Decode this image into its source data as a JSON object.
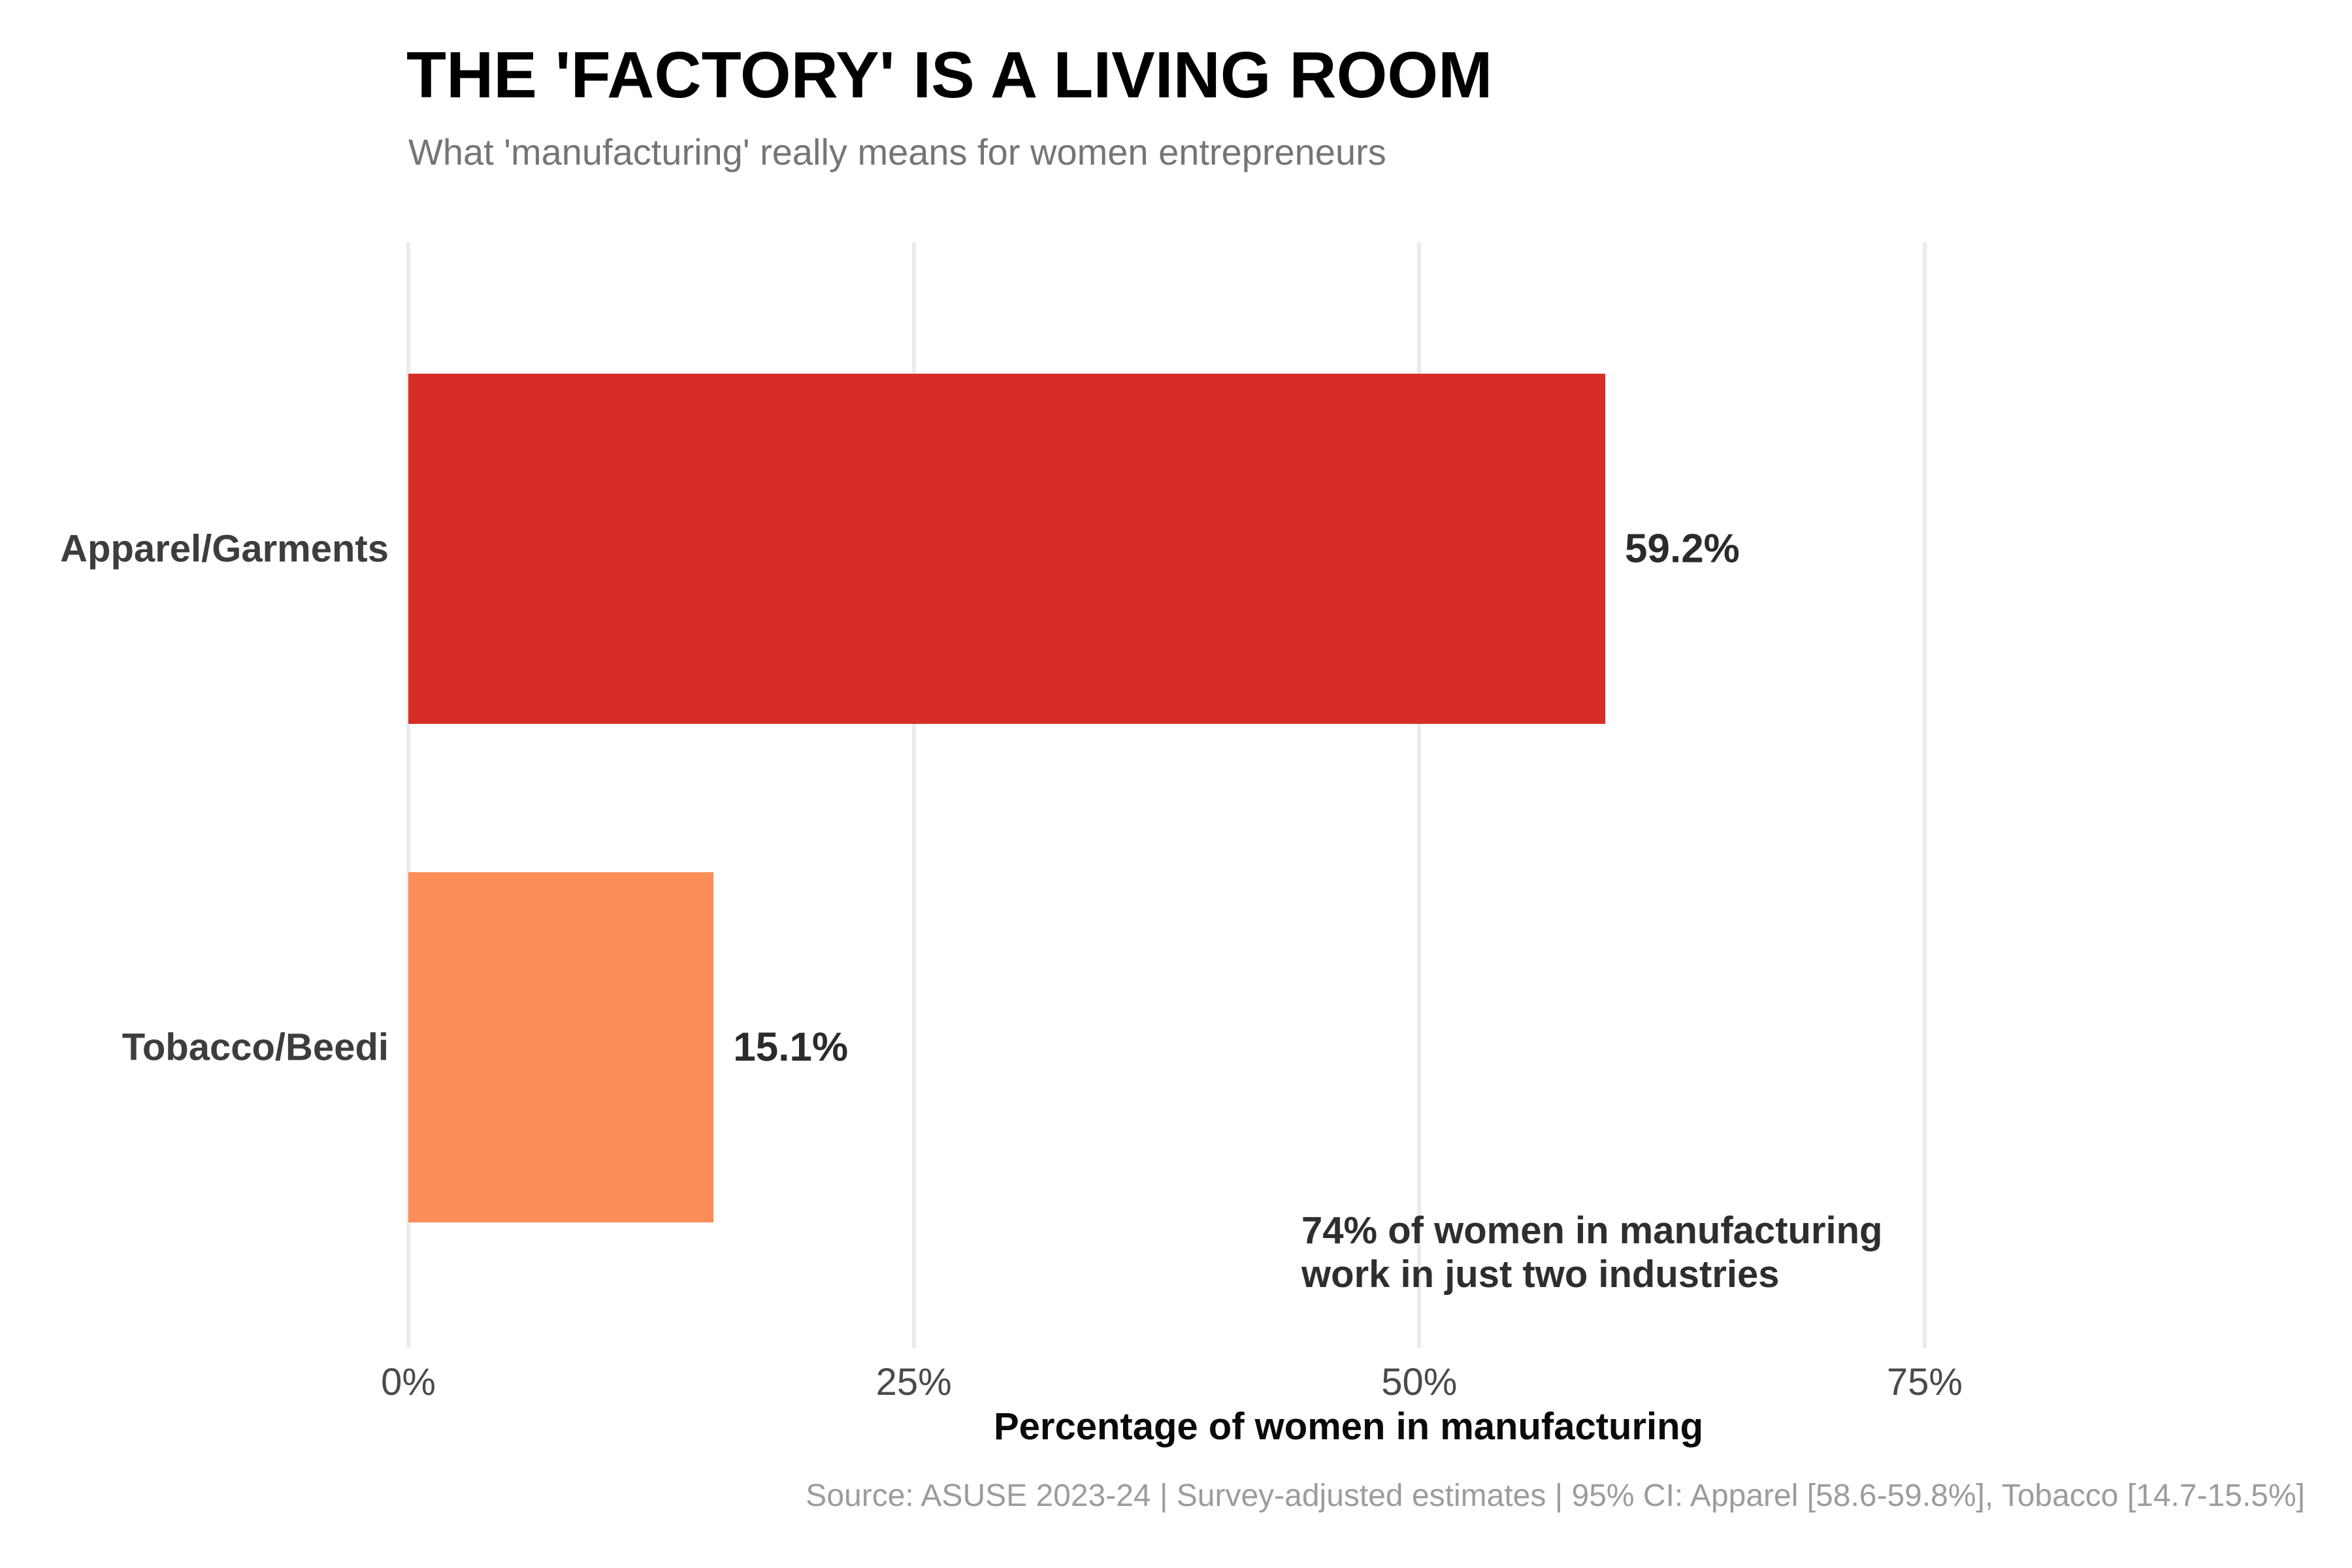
{
  "chart_data": {
    "type": "bar",
    "orientation": "horizontal",
    "title": "THE 'FACTORY' IS A LIVING ROOM",
    "subtitle": "What 'manufacturing' really means for women entrepreneurs",
    "categories": [
      "Apparel/Garments",
      "Tobacco/Beedi"
    ],
    "values": [
      59.2,
      15.1
    ],
    "value_labels": [
      "59.2%",
      "15.1%"
    ],
    "bar_colors": [
      "#d62d26",
      "#fb8d59"
    ],
    "xlabel": "Percentage of women in manufacturing",
    "x_ticks": [
      "0%",
      "25%",
      "50%",
      "75%"
    ],
    "x_tick_values": [
      0,
      25,
      50,
      75
    ],
    "xlim": [
      0,
      93
    ],
    "grid": "vertical-light",
    "grid_color": "#ebebeb",
    "legend": "none",
    "annotation": {
      "line1": "74% of women in manufacturing",
      "line2": "work in just two industries"
    },
    "source": "Source: ASUSE 2023-24 | Survey-adjusted estimates | 95% CI: Apparel [58.6-59.8%], Tobacco [14.7-15.5%]"
  }
}
